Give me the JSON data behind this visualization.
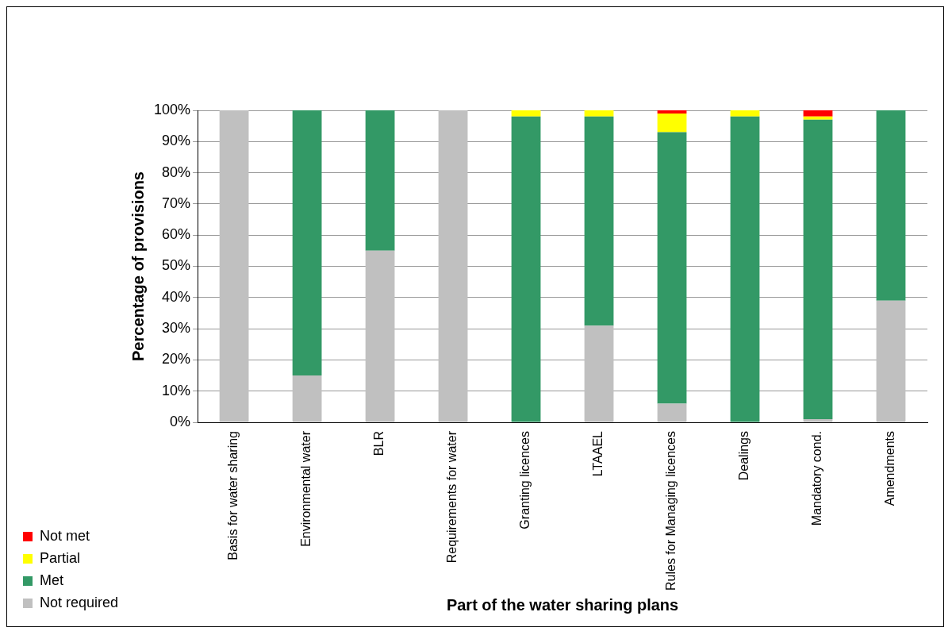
{
  "chart_data": {
    "type": "bar",
    "stacked": true,
    "xlabel": "Part of the water sharing plans",
    "ylabel": "Percentage of provisions",
    "categories": [
      "Basis for water sharing",
      "Environmental water",
      "BLR",
      "Requirements for water",
      "Granting licences",
      "LTAAEL",
      "Rules for Managing licences",
      "Dealings",
      "Mandatory cond.",
      "Amendments"
    ],
    "series": [
      {
        "name": "Not required",
        "color": "#c0c0c0",
        "values": [
          100,
          15,
          55,
          100,
          0,
          31,
          6,
          0,
          1,
          39
        ]
      },
      {
        "name": "Met",
        "color": "#339966",
        "values": [
          0,
          85,
          45,
          0,
          98,
          67,
          87,
          98,
          96,
          61
        ]
      },
      {
        "name": "Partial",
        "color": "#ffff00",
        "values": [
          0,
          0,
          0,
          0,
          2,
          2,
          6,
          2,
          1,
          0
        ]
      },
      {
        "name": "Not met",
        "color": "#ff0000",
        "values": [
          0,
          0,
          0,
          0,
          0,
          0,
          1,
          0,
          2,
          0
        ]
      }
    ],
    "ylim": [
      0,
      100
    ],
    "yticks": [
      {
        "value": 0,
        "label": "0%"
      },
      {
        "value": 10,
        "label": "10%"
      },
      {
        "value": 20,
        "label": "20%"
      },
      {
        "value": 30,
        "label": "30%"
      },
      {
        "value": 40,
        "label": "40%"
      },
      {
        "value": 50,
        "label": "50%"
      },
      {
        "value": 60,
        "label": "60%"
      },
      {
        "value": 70,
        "label": "70%"
      },
      {
        "value": 80,
        "label": "80%"
      },
      {
        "value": 90,
        "label": "90%"
      },
      {
        "value": 100,
        "label": "100%"
      }
    ],
    "grid": "y",
    "legend": "bottom left"
  }
}
